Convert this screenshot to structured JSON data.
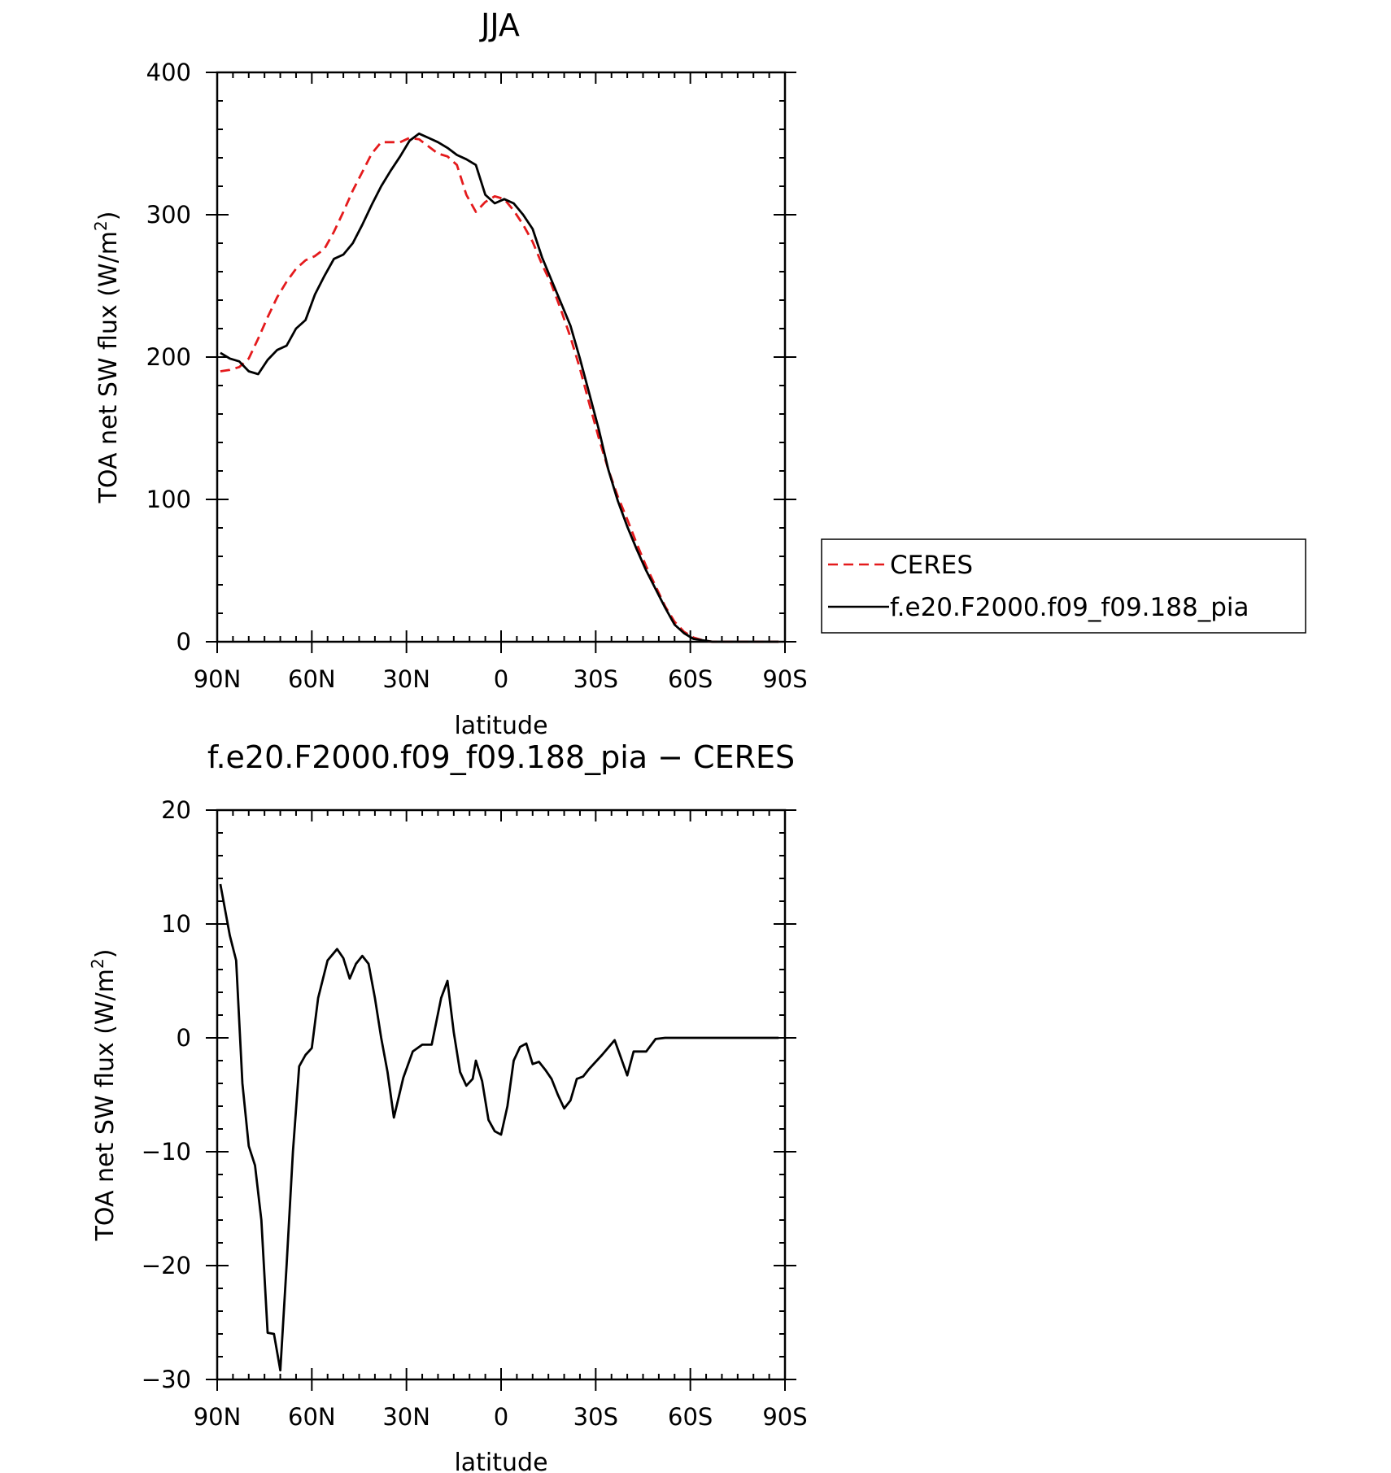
{
  "chart_data": [
    {
      "type": "line",
      "title": "JJA",
      "xlabel": "latitude",
      "ylabel": "TOA net SW flux (W/m",
      "ylabel_sup": "2",
      "ylabel_end": ")",
      "xlim": [
        90,
        -90
      ],
      "ylim": [
        0,
        400
      ],
      "xticks": [
        90,
        60,
        30,
        0,
        -30,
        -60,
        -90
      ],
      "xtick_labels": [
        "90N",
        "60N",
        "30N",
        "0",
        "30S",
        "60S",
        "90S"
      ],
      "yticks": [
        0,
        100,
        200,
        300,
        400
      ],
      "ytick_labels": [
        "0",
        "100",
        "200",
        "300",
        "400"
      ],
      "legend_position": "right",
      "series": [
        {
          "name": "CERES",
          "color": "#e41a1c",
          "style": "dashed",
          "x": [
            89,
            86,
            83,
            80,
            77,
            74,
            71,
            68,
            65,
            62,
            59,
            56,
            53,
            50,
            47,
            44,
            41,
            38,
            35,
            32,
            29,
            26,
            23,
            20,
            17,
            14,
            11,
            8,
            5,
            2,
            -1,
            -4,
            -7,
            -10,
            -13,
            -16,
            -19,
            -22,
            -25,
            -28,
            -31,
            -34,
            -37,
            -40,
            -43,
            -46,
            -49,
            -52,
            -55,
            -58,
            -61,
            -64,
            -67,
            -70,
            -73,
            -76,
            -79,
            -82,
            -85,
            -88
          ],
          "y": [
            190,
            191,
            193,
            199,
            213,
            228,
            242,
            253,
            262,
            268,
            271,
            276,
            288,
            302,
            317,
            330,
            343,
            351,
            351,
            351,
            354,
            353,
            348,
            343,
            341,
            335,
            314,
            302,
            309,
            313,
            311,
            303,
            293,
            281,
            265,
            251,
            233,
            214,
            192,
            167,
            143,
            121,
            102,
            86,
            69,
            53,
            39,
            25,
            14,
            7,
            3,
            1,
            0,
            0,
            0,
            0,
            0,
            0,
            0,
            0
          ]
        },
        {
          "name": "f.e20.F2000.f09_f09.188_pia",
          "color": "#000000",
          "style": "solid",
          "x": [
            89,
            86,
            83,
            80,
            77,
            74,
            71,
            68,
            65,
            62,
            59,
            56,
            53,
            50,
            47,
            44,
            41,
            38,
            35,
            32,
            29,
            26,
            23,
            20,
            17,
            14,
            11,
            8,
            5,
            2,
            -1,
            -4,
            -7,
            -10,
            -13,
            -16,
            -19,
            -22,
            -25,
            -28,
            -31,
            -34,
            -37,
            -40,
            -43,
            -46,
            -49,
            -52,
            -55,
            -58,
            -61,
            -64,
            -67,
            -70,
            -73,
            -76,
            -79,
            -82,
            -85,
            -88
          ],
          "y": [
            203,
            199,
            197,
            190,
            188,
            198,
            205,
            208,
            220,
            226,
            244,
            257,
            269,
            272,
            280,
            293,
            307,
            320,
            331,
            341,
            352,
            357,
            354,
            351,
            347,
            342,
            339,
            335,
            314,
            308,
            311,
            308,
            300,
            290,
            270,
            254,
            238,
            222,
            199,
            174,
            149,
            121,
            99,
            81,
            65,
            50,
            37,
            24,
            12,
            6,
            2,
            1,
            0,
            0,
            0,
            0,
            0,
            0,
            0,
            0
          ]
        }
      ]
    },
    {
      "type": "line",
      "title": "f.e20.F2000.f09_f09.188_pia − CERES",
      "xlabel": "latitude",
      "ylabel": "TOA net SW flux (W/m",
      "ylabel_sup": "2",
      "ylabel_end": ")",
      "xlim": [
        90,
        -90
      ],
      "ylim": [
        -30,
        20
      ],
      "xticks": [
        90,
        60,
        30,
        0,
        -30,
        -60,
        -90
      ],
      "xtick_labels": [
        "90N",
        "60N",
        "30N",
        "0",
        "30S",
        "60S",
        "90S"
      ],
      "yticks": [
        -30,
        -20,
        -10,
        0,
        10,
        20
      ],
      "ytick_labels": [
        "−30",
        "−20",
        "−10",
        "0",
        "10",
        "20"
      ],
      "series": [
        {
          "name": "",
          "color": "#000000",
          "style": "solid",
          "x": [
            89,
            86,
            84,
            82,
            80,
            78,
            76,
            74,
            72,
            70,
            68,
            66,
            64,
            62,
            60,
            58,
            55,
            52,
            50,
            48,
            46,
            44,
            42,
            40,
            38,
            36,
            34,
            31,
            28,
            25,
            22,
            19,
            17,
            15,
            13,
            11,
            9,
            8,
            6,
            4,
            2,
            0,
            -2,
            -4,
            -6,
            -8,
            -10,
            -12,
            -14,
            -16,
            -18,
            -20,
            -22,
            -24,
            -26,
            -28,
            -32,
            -36,
            -40,
            -42,
            -46,
            -49,
            -52,
            -55,
            -58,
            -61,
            -63,
            -65,
            -67,
            -69,
            -72,
            -75,
            -78,
            -81,
            -84,
            -88
          ],
          "y": [
            13.5,
            9.0,
            6.8,
            -4.0,
            -9.5,
            -11.2,
            -16.0,
            -25.9,
            -26.0,
            -29.2,
            -20.0,
            -10.0,
            -2.5,
            -1.5,
            -0.9,
            3.5,
            6.8,
            7.8,
            7.0,
            5.2,
            6.5,
            7.2,
            6.5,
            3.5,
            0.0,
            -3.0,
            -7.0,
            -3.5,
            -1.2,
            -0.6,
            -0.6,
            3.5,
            5.0,
            0.5,
            -3.0,
            -4.2,
            -3.6,
            -2.0,
            -3.8,
            -7.2,
            -8.2,
            -8.5,
            -6.0,
            -2.0,
            -0.8,
            -0.5,
            -2.3,
            -2.1,
            -2.8,
            -3.6,
            -5.0,
            -6.2,
            -5.5,
            -3.6,
            -3.4,
            -2.7,
            -1.5,
            -0.2,
            -3.3,
            -1.2,
            -1.2,
            -0.1,
            0.0,
            0.0,
            0.0,
            0.0,
            0.0,
            0.0,
            0.0,
            0.0,
            0.0,
            0.0,
            0.0,
            0.0,
            0.0,
            0.0
          ]
        }
      ]
    }
  ]
}
